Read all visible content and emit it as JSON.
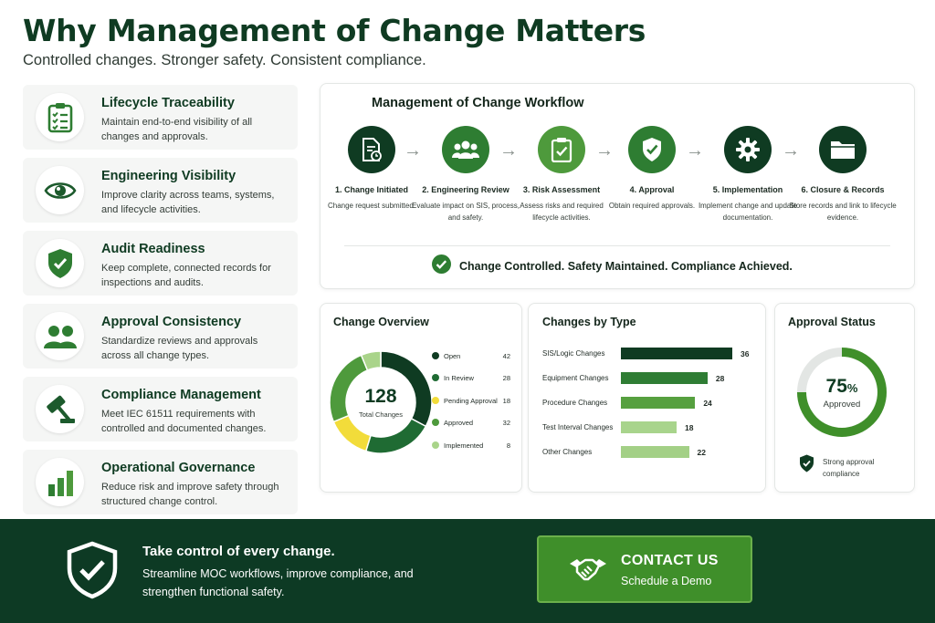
{
  "page": {
    "title": "Why Management of Change Matters",
    "subtitle": "Controlled changes. Stronger safety. Consistent compliance."
  },
  "benefits": [
    {
      "title": "Lifecycle Traceability",
      "desc": "Maintain end-to-end visibility of all changes and approvals.",
      "icon": "clipboard-checklist-icon"
    },
    {
      "title": "Engineering Visibility",
      "desc": "Improve clarity across teams, systems, and lifecycle activities.",
      "icon": "eye-icon"
    },
    {
      "title": "Audit Readiness",
      "desc": "Keep complete, connected records for inspections and audits.",
      "icon": "shield-check-icon"
    },
    {
      "title": "Approval Consistency",
      "desc": "Standardize reviews and approvals across all change types.",
      "icon": "people-icon"
    },
    {
      "title": "Compliance Management",
      "desc": "Meet IEC 61511 requirements with controlled and documented changes.",
      "icon": "gavel-icon"
    },
    {
      "title": "Operational Governance",
      "desc": "Reduce risk and improve safety through structured change control.",
      "icon": "bar-chart-icon"
    }
  ],
  "workflow": {
    "title": "Management of Change Workflow",
    "steps": [
      {
        "title": "1. Change Initiated",
        "desc": "Change request submitted.",
        "icon": "document-icon"
      },
      {
        "title": "2. Engineering Review",
        "desc": "Evaluate impact on SIS, process, and safety.",
        "icon": "team-icon"
      },
      {
        "title": "3. Risk Assessment",
        "desc": "Assess risks and required lifecycle activities.",
        "icon": "clipboard-check-icon"
      },
      {
        "title": "4. Approval",
        "desc": "Obtain required approvals.",
        "icon": "shield-check-icon"
      },
      {
        "title": "5. Implementation",
        "desc": "Implement change and update documentation.",
        "icon": "gear-icon"
      },
      {
        "title": "6. Closure & Records",
        "desc": "Store records and link to lifecycle evidence.",
        "icon": "folder-icon"
      }
    ],
    "footer": "Change Controlled. Safety Maintained. Compliance Achieved."
  },
  "overview": {
    "title": "Change Overview",
    "total": "128",
    "total_label": "Total Changes"
  },
  "types": {
    "title": "Changes by Type"
  },
  "approval": {
    "title": "Approval Status",
    "percent": "75",
    "percent_sign": "%",
    "label": "Approved",
    "note": "Strong approval compliance",
    "value": 0.75
  },
  "banner": {
    "title": "Take control of every change.",
    "desc": "Streamline MOC workflows, improve compliance, and strengthen functional safety.",
    "cta_title": "CONTACT US",
    "cta_sub": "Schedule a Demo"
  },
  "colors": {
    "dark_green": "#0f3b22",
    "green": "#2e7d32",
    "mid_green": "#4e9a3c",
    "light_green": "#a9d48a",
    "yellow": "#f2dc3a",
    "grey": "#c3cac6"
  },
  "chart_data": [
    {
      "type": "pie",
      "title": "Change Overview",
      "categories": [
        "Open",
        "In Review",
        "Pending Approval",
        "Approved",
        "Implemented"
      ],
      "values": [
        42,
        28,
        18,
        32,
        8
      ],
      "colors": [
        "#0f3b22",
        "#1f6b33",
        "#f2dc3a",
        "#4e9a3c",
        "#a9d48a"
      ]
    },
    {
      "type": "bar",
      "title": "Changes by Type",
      "categories": [
        "SIS/Logic Changes",
        "Equipment Changes",
        "Procedure Changes",
        "Test Interval Changes",
        "Other Changes"
      ],
      "values": [
        36,
        28,
        24,
        18,
        22
      ],
      "colors": [
        "#0f3b22",
        "#2f7d34",
        "#56a03f",
        "#a8d48c",
        "#a3d086"
      ]
    }
  ]
}
